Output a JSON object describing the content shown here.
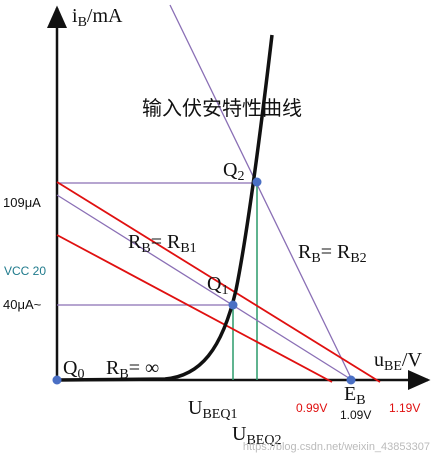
{
  "axes": {
    "y_label": {
      "main": "i",
      "sub": "B",
      "unit": "/mA"
    },
    "x_label": {
      "main": "u",
      "sub": "BE",
      "unit": "/V"
    }
  },
  "title": "输入伏安特性曲线",
  "points": {
    "q2": {
      "main": "Q",
      "sub": "2"
    },
    "q1": {
      "main": "Q",
      "sub": "1"
    },
    "q0": {
      "main": "Q",
      "sub": "0"
    },
    "eb": {
      "main": "E",
      "sub": "B"
    }
  },
  "lines": {
    "rb1": {
      "a": "R",
      "a_sub": "B",
      "eq": "= R",
      "b_sub": "B1"
    },
    "rb2": {
      "a": "R",
      "a_sub": "B",
      "eq": "= R",
      "b_sub": "B2"
    },
    "rbinf": {
      "a": "R",
      "a_sub": "B",
      "eq": "= ∞"
    }
  },
  "annotations": {
    "i_q2": "109μA",
    "i_q1": "40μA~",
    "vcc": "VCC 20",
    "u_low": "0.99V",
    "u_mid": "1.09V",
    "u_high": "1.19V"
  },
  "u_beq1": {
    "main": "U",
    "sub": "BEQ1"
  },
  "u_beq2": {
    "main": "U",
    "sub": "BEQ2"
  },
  "watermark": "https://blog.csdn.net/weixin_43853307"
}
